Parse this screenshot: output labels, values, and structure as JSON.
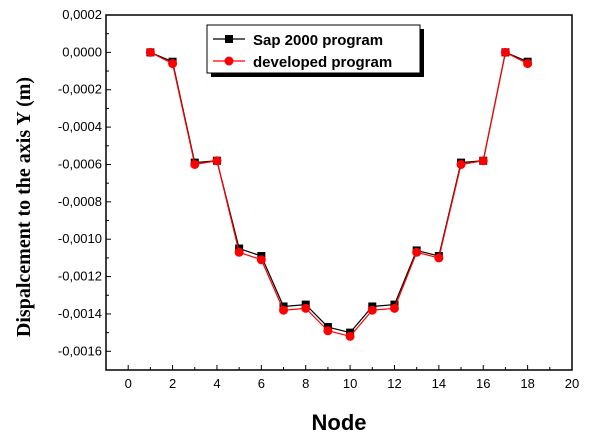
{
  "chart_data": {
    "type": "line",
    "xlabel": "Node",
    "ylabel": "Dispalcement to the axis  Y (m)",
    "xlim": [
      -1,
      20
    ],
    "ylim": [
      -0.0017,
      0.0002
    ],
    "x_ticks": [
      0,
      2,
      4,
      6,
      8,
      10,
      12,
      14,
      16,
      18,
      20
    ],
    "x_tick_labels": [
      "0",
      "2",
      "4",
      "6",
      "8",
      "10",
      "12",
      "14",
      "16",
      "18",
      "20"
    ],
    "y_ticks": [
      0.0002,
      0.0,
      -0.0002,
      -0.0004,
      -0.0006,
      -0.0008,
      -0.001,
      -0.0012,
      -0.0014,
      -0.0016
    ],
    "y_tick_labels": [
      "0,0002",
      "0,0000",
      "-0,0002",
      "-0,0004",
      "-0,0006",
      "-0,0008",
      "-0,0010",
      "-0,0012",
      "-0,0014",
      "-0,0016"
    ],
    "grid": false,
    "legend_position": "top-right",
    "x": [
      1,
      2,
      3,
      4,
      5,
      6,
      7,
      8,
      9,
      10,
      11,
      12,
      13,
      14,
      15,
      16,
      17,
      18
    ],
    "series": [
      {
        "name": "Sap 2000 program",
        "color": "#000000",
        "marker": "square",
        "values": [
          0.0,
          -5e-05,
          -0.00059,
          -0.00058,
          -0.00105,
          -0.00109,
          -0.00136,
          -0.00135,
          -0.00147,
          -0.0015,
          -0.00136,
          -0.00135,
          -0.00106,
          -0.00109,
          -0.00059,
          -0.00058,
          0.0,
          -5e-05
        ]
      },
      {
        "name": "developed program",
        "color": "#ff0000",
        "marker": "circle",
        "values": [
          0.0,
          -6e-05,
          -0.0006,
          -0.00058,
          -0.00107,
          -0.00111,
          -0.00138,
          -0.00137,
          -0.00149,
          -0.00152,
          -0.00138,
          -0.00137,
          -0.00107,
          -0.0011,
          -0.0006,
          -0.00058,
          0.0,
          -6e-05
        ]
      }
    ]
  }
}
